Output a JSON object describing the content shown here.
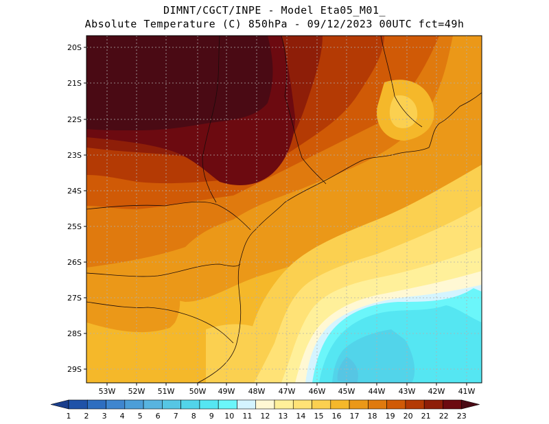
{
  "header": {
    "line1": "DIMNT/CGCT/INPE -  Model Eta05_M01_",
    "line2": "Absolute Temperature (C) 850hPa -  09/12/2023 00UTC fct=49h"
  },
  "axes": {
    "lat_labels": [
      "20S",
      "21S",
      "22S",
      "23S",
      "24S",
      "25S",
      "26S",
      "27S",
      "28S",
      "29S"
    ],
    "lon_labels": [
      "53W",
      "52W",
      "51W",
      "50W",
      "49W",
      "48W",
      "47W",
      "46W",
      "45W",
      "44W",
      "43W",
      "42W",
      "41W"
    ]
  },
  "colorbar": {
    "labels": [
      "1",
      "2",
      "3",
      "4",
      "5",
      "6",
      "7",
      "8",
      "9",
      "10",
      "11",
      "12",
      "13",
      "14",
      "15",
      "16",
      "17",
      "18",
      "19",
      "20",
      "21",
      "22",
      "23"
    ],
    "colors": [
      "#1a3e8c",
      "#1f52a8",
      "#2e6ec0",
      "#3f86cf",
      "#4c9ed8",
      "#58b4e0",
      "#56c6e4",
      "#52d4ea",
      "#55e6f2",
      "#6bf6fa",
      "#d4f4ff",
      "#fff8d4",
      "#fff09a",
      "#ffe276",
      "#fbd050",
      "#f5b82a",
      "#eb9818",
      "#e07a0e",
      "#d05a06",
      "#b43a04",
      "#8e1e08",
      "#6c0a10",
      "#4a0a14"
    ]
  }
}
